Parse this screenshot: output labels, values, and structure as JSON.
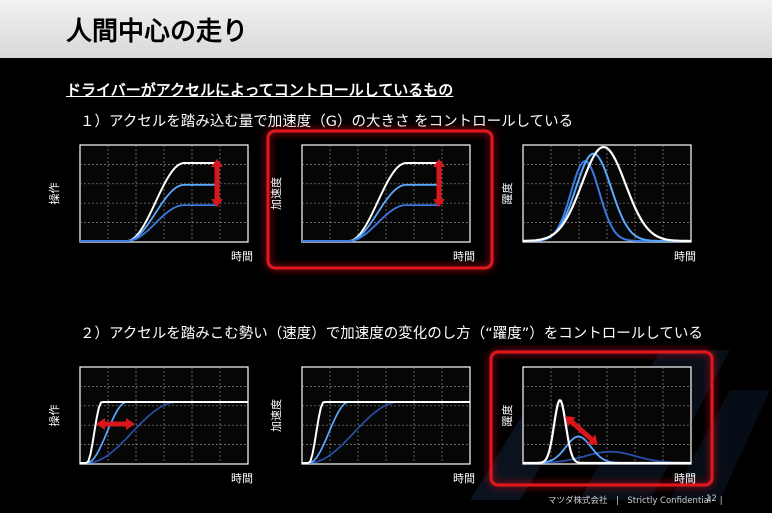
{
  "slide": {
    "title": "人間中心の走り",
    "subtitle": "ドライバーがアクセルによってコントロールしているもの",
    "section1": "１）アクセルを踏み込む量で加速度（G）の大きさ をコントロールしている",
    "section2": "２）アクセルを踏みこむ勢い（速度）で加速度の変化のし方（“躍度”）をコントロールしている",
    "footer": "マツダ株式会社　|　Strictly Confidential　|",
    "page_number": "12"
  },
  "colors": {
    "highlight_frame": "#e2151b",
    "arrow": "#d9161c",
    "curve_white": "#ffffff",
    "curve_light": "#5aa8ff",
    "curve_mid": "#3b78e0",
    "curve_dark": "#2a4fa8"
  },
  "chart_data": [
    {
      "type": "line",
      "title": "",
      "ylabel": "操作",
      "xlabel": "時間",
      "series": [
        {
          "values": [
            0,
            1.0
          ]
        },
        {
          "values": [
            0,
            0.72
          ]
        },
        {
          "values": [
            0,
            0.46
          ]
        }
      ]
    },
    {
      "type": "line",
      "title": "",
      "ylabel": "加速度",
      "xlabel": "時間",
      "highlighted": true,
      "series": [
        {
          "values": [
            0,
            1.0
          ]
        },
        {
          "values": [
            0,
            0.72
          ]
        },
        {
          "values": [
            0,
            0.46
          ]
        }
      ]
    },
    {
      "type": "line",
      "title": "",
      "ylabel": "躍度",
      "xlabel": "時間",
      "series": [
        {
          "values": [
            1.0
          ]
        },
        {
          "values": [
            0.93
          ]
        },
        {
          "values": [
            0.85
          ]
        }
      ]
    },
    {
      "type": "line",
      "title": "",
      "ylabel": "操作",
      "xlabel": "時間",
      "series": [
        {
          "values": [
            1.0
          ]
        },
        {
          "values": [
            1.0
          ]
        },
        {
          "values": [
            1.0
          ]
        }
      ]
    },
    {
      "type": "line",
      "title": "",
      "ylabel": "加速度",
      "xlabel": "時間",
      "series": [
        {
          "values": [
            1.0
          ]
        },
        {
          "values": [
            1.0
          ]
        },
        {
          "values": [
            1.0
          ]
        }
      ]
    },
    {
      "type": "line",
      "title": "",
      "ylabel": "躍度",
      "xlabel": "時間",
      "highlighted": true,
      "series": [
        {
          "values": [
            1.0
          ]
        },
        {
          "values": [
            0.42
          ]
        },
        {
          "values": [
            0.18
          ]
        }
      ]
    }
  ]
}
